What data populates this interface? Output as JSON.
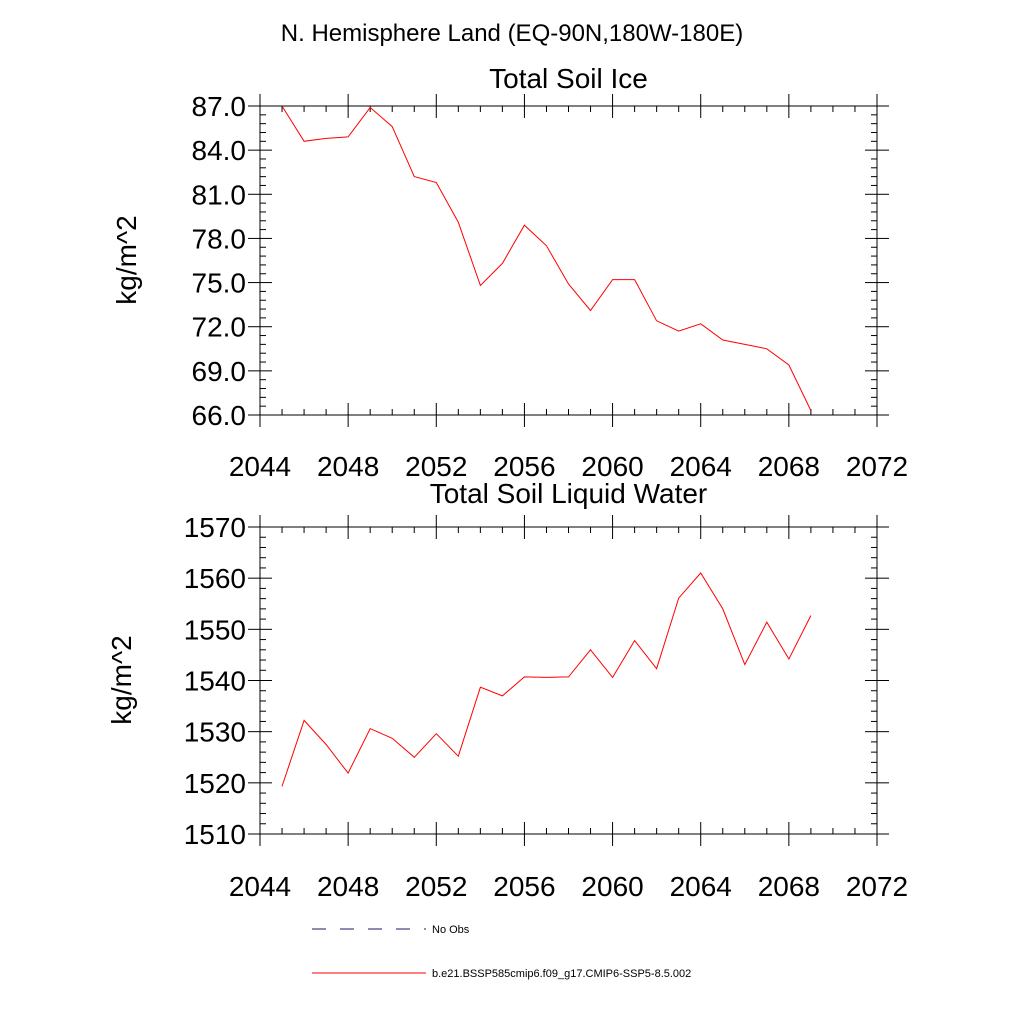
{
  "figure": {
    "main_title": "N. Hemisphere Land (EQ-90N,180W-180E)"
  },
  "legend": {
    "entries": [
      {
        "label": "No Obs",
        "color": "#1a1a66",
        "dashed": true
      },
      {
        "label": "b.e21.BSSP585cmip6.f09_g17.CMIP6-SSP5-8.5.002",
        "color": "#ff0000",
        "dashed": false
      }
    ]
  },
  "chart_data": [
    {
      "type": "line",
      "title": "Total Soil Ice",
      "xlabel": "",
      "ylabel": "kg/m^2",
      "xlim": [
        2044,
        2072
      ],
      "ylim": [
        66,
        87
      ],
      "xticks": [
        2044,
        2048,
        2052,
        2056,
        2060,
        2064,
        2068,
        2072
      ],
      "xtick_labels": [
        "2044",
        "2048",
        "2052",
        "2056",
        "2060",
        "2064",
        "2068",
        "2072"
      ],
      "yticks": [
        66,
        69,
        72,
        75,
        78,
        81,
        84,
        87
      ],
      "ytick_labels": [
        "66.0",
        "69.0",
        "72.0",
        "75.0",
        "78.0",
        "81.0",
        "84.0",
        "87.0"
      ],
      "grid": false,
      "series": [
        {
          "color": "#ff0000",
          "x": [
            2045,
            2046,
            2047,
            2048,
            2049,
            2050,
            2051,
            2052,
            2053,
            2054,
            2055,
            2056,
            2057,
            2058,
            2059,
            2060,
            2061,
            2062,
            2063,
            2064,
            2065,
            2066,
            2067,
            2068,
            2069
          ],
          "y": [
            87.0,
            84.6,
            84.8,
            84.9,
            86.9,
            85.6,
            82.2,
            81.8,
            79.1,
            74.8,
            76.3,
            78.9,
            77.5,
            74.9,
            73.1,
            75.2,
            75.2,
            72.4,
            71.7,
            72.2,
            71.1,
            70.8,
            70.5,
            69.4,
            66.3
          ]
        }
      ]
    },
    {
      "type": "line",
      "title": "Total Soil Liquid Water",
      "xlabel": "",
      "ylabel": "kg/m^2",
      "xlim": [
        2044,
        2072
      ],
      "ylim": [
        1510,
        1570
      ],
      "xticks": [
        2044,
        2048,
        2052,
        2056,
        2060,
        2064,
        2068,
        2072
      ],
      "xtick_labels": [
        "2044",
        "2048",
        "2052",
        "2056",
        "2060",
        "2064",
        "2068",
        "2072"
      ],
      "yticks": [
        1510,
        1520,
        1530,
        1540,
        1550,
        1560,
        1570
      ],
      "ytick_labels": [
        "1510",
        "1520",
        "1530",
        "1540",
        "1550",
        "1560",
        "1570"
      ],
      "grid": false,
      "series": [
        {
          "color": "#ff0000",
          "x": [
            2045,
            2046,
            2047,
            2048,
            2049,
            2050,
            2051,
            2052,
            2053,
            2054,
            2055,
            2056,
            2057,
            2058,
            2059,
            2060,
            2061,
            2062,
            2063,
            2064,
            2065,
            2066,
            2067,
            2068,
            2069
          ],
          "y": [
            1519.3,
            1532.2,
            1527.5,
            1521.9,
            1530.6,
            1528.7,
            1525.0,
            1529.6,
            1525.2,
            1538.7,
            1537.0,
            1540.7,
            1540.6,
            1540.7,
            1546.0,
            1540.6,
            1547.8,
            1542.3,
            1556.1,
            1561.0,
            1554.0,
            1543.1,
            1551.4,
            1544.2,
            1552.7
          ]
        }
      ]
    }
  ]
}
